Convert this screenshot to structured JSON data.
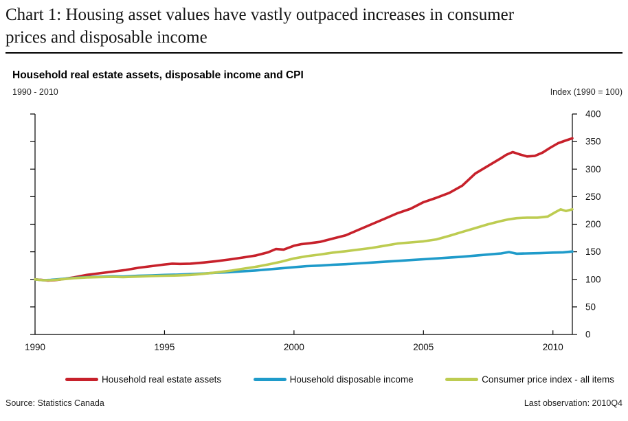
{
  "header": {
    "title": "Chart 1: Housing asset values have vastly outpaced increases in consumer prices and disposable income"
  },
  "chart": {
    "subtitle": "Household real estate assets, disposable income and CPI",
    "period": "1990 - 2010",
    "index_label": "Index (1990 = 100)"
  },
  "chart_data": {
    "type": "line",
    "title": "Household real estate assets, disposable income and CPI",
    "xlabel": "",
    "ylabel": "Index (1990 = 100)",
    "xlim": [
      1990,
      2010.75
    ],
    "ylim": [
      0,
      400
    ],
    "x_ticks": [
      1990,
      1995,
      2000,
      2005,
      2010
    ],
    "y_ticks": [
      0,
      50,
      100,
      150,
      200,
      250,
      300,
      350,
      400
    ],
    "grid": false,
    "legend_position": "bottom",
    "series": [
      {
        "name": "Household real estate assets",
        "color": "#c7212b",
        "points": [
          [
            1990.0,
            100
          ],
          [
            1990.25,
            99
          ],
          [
            1990.5,
            98
          ],
          [
            1990.75,
            98.5
          ],
          [
            1991.0,
            100
          ],
          [
            1991.5,
            103.5
          ],
          [
            1992.0,
            108
          ],
          [
            1992.5,
            111
          ],
          [
            1993.0,
            114
          ],
          [
            1993.5,
            117
          ],
          [
            1994.0,
            121
          ],
          [
            1994.5,
            124
          ],
          [
            1995.0,
            127
          ],
          [
            1995.3,
            128.5
          ],
          [
            1995.6,
            128
          ],
          [
            1996.0,
            128.5
          ],
          [
            1996.5,
            130.5
          ],
          [
            1997.0,
            133
          ],
          [
            1997.5,
            136
          ],
          [
            1998.0,
            139.5
          ],
          [
            1998.5,
            143
          ],
          [
            1999.0,
            149
          ],
          [
            1999.3,
            155
          ],
          [
            1999.6,
            154
          ],
          [
            2000.0,
            161
          ],
          [
            2000.3,
            164
          ],
          [
            2000.6,
            165.5
          ],
          [
            2001.0,
            168
          ],
          [
            2001.5,
            174
          ],
          [
            2002.0,
            180
          ],
          [
            2002.5,
            190
          ],
          [
            2003.0,
            200
          ],
          [
            2003.5,
            210
          ],
          [
            2004.0,
            220
          ],
          [
            2004.5,
            228
          ],
          [
            2005.0,
            240
          ],
          [
            2005.5,
            248
          ],
          [
            2006.0,
            257
          ],
          [
            2006.5,
            270
          ],
          [
            2007.0,
            292
          ],
          [
            2007.5,
            306
          ],
          [
            2008.0,
            320
          ],
          [
            2008.2,
            326
          ],
          [
            2008.45,
            331
          ],
          [
            2008.7,
            327
          ],
          [
            2009.0,
            323
          ],
          [
            2009.3,
            324
          ],
          [
            2009.6,
            330
          ],
          [
            2009.9,
            339
          ],
          [
            2010.2,
            347
          ],
          [
            2010.5,
            352
          ],
          [
            2010.75,
            356
          ]
        ]
      },
      {
        "name": "Household disposable income",
        "color": "#1f9bca",
        "points": [
          [
            1990.0,
            100
          ],
          [
            1990.3,
            98.5
          ],
          [
            1990.6,
            99
          ],
          [
            1991.0,
            100.5
          ],
          [
            1991.5,
            102.5
          ],
          [
            1992.0,
            104
          ],
          [
            1992.5,
            104.5
          ],
          [
            1993.0,
            105.5
          ],
          [
            1993.4,
            105
          ],
          [
            1994.0,
            106.5
          ],
          [
            1994.5,
            107
          ],
          [
            1995.0,
            108
          ],
          [
            1995.5,
            108.5
          ],
          [
            1996.0,
            109.5
          ],
          [
            1996.5,
            110.5
          ],
          [
            1997.0,
            112
          ],
          [
            1997.5,
            113
          ],
          [
            1998.0,
            114.5
          ],
          [
            1998.5,
            116
          ],
          [
            1999.0,
            118
          ],
          [
            1999.5,
            120
          ],
          [
            2000.0,
            122
          ],
          [
            2000.5,
            124
          ],
          [
            2001.0,
            125
          ],
          [
            2001.5,
            126.5
          ],
          [
            2002.0,
            127.5
          ],
          [
            2002.5,
            129
          ],
          [
            2003.0,
            130.5
          ],
          [
            2003.5,
            132
          ],
          [
            2004.0,
            133.5
          ],
          [
            2004.5,
            135
          ],
          [
            2005.0,
            136.5
          ],
          [
            2005.5,
            138
          ],
          [
            2006.0,
            139.5
          ],
          [
            2006.5,
            141
          ],
          [
            2007.0,
            143
          ],
          [
            2007.5,
            145
          ],
          [
            2008.0,
            147
          ],
          [
            2008.3,
            149.5
          ],
          [
            2008.6,
            146.5
          ],
          [
            2009.0,
            147
          ],
          [
            2009.5,
            147.5
          ],
          [
            2010.0,
            148.5
          ],
          [
            2010.4,
            149
          ],
          [
            2010.75,
            150.5
          ]
        ]
      },
      {
        "name": "Consumer price index - all items",
        "color": "#bdcc51",
        "points": [
          [
            1990.0,
            100
          ],
          [
            1990.3,
            98.5
          ],
          [
            1990.6,
            98.5
          ],
          [
            1991.0,
            100
          ],
          [
            1991.5,
            102
          ],
          [
            1992.0,
            103.5
          ],
          [
            1992.5,
            104
          ],
          [
            1993.0,
            104.5
          ],
          [
            1993.4,
            104
          ],
          [
            1994.0,
            105
          ],
          [
            1994.5,
            106
          ],
          [
            1995.0,
            106.5
          ],
          [
            1995.5,
            107
          ],
          [
            1996.0,
            108
          ],
          [
            1996.5,
            110
          ],
          [
            1997.0,
            112.5
          ],
          [
            1997.6,
            116
          ],
          [
            1998.0,
            119
          ],
          [
            1998.5,
            122.5
          ],
          [
            1999.0,
            127
          ],
          [
            1999.5,
            132
          ],
          [
            2000.0,
            138
          ],
          [
            2000.5,
            142
          ],
          [
            2001.0,
            145
          ],
          [
            2001.5,
            148.5
          ],
          [
            2002.0,
            151
          ],
          [
            2002.5,
            154
          ],
          [
            2003.0,
            157
          ],
          [
            2003.5,
            161
          ],
          [
            2004.0,
            165
          ],
          [
            2004.5,
            167
          ],
          [
            2005.0,
            169
          ],
          [
            2005.5,
            172.5
          ],
          [
            2006.0,
            179
          ],
          [
            2006.5,
            186
          ],
          [
            2007.0,
            193
          ],
          [
            2007.5,
            200
          ],
          [
            2008.0,
            206
          ],
          [
            2008.3,
            209
          ],
          [
            2008.6,
            211
          ],
          [
            2009.0,
            212
          ],
          [
            2009.4,
            212
          ],
          [
            2009.8,
            214
          ],
          [
            2010.1,
            222
          ],
          [
            2010.3,
            227
          ],
          [
            2010.5,
            224
          ],
          [
            2010.75,
            227
          ]
        ]
      }
    ]
  },
  "footer": {
    "source": "Source: Statistics Canada",
    "last_observation": "Last observation: 2010Q4"
  }
}
